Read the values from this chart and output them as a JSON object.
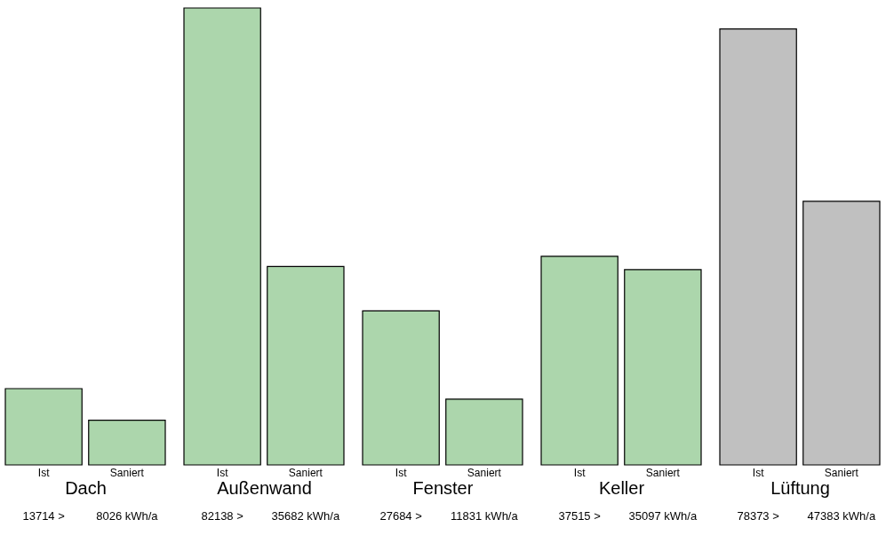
{
  "chart_data": [
    {
      "type": "bar",
      "xlabel": "Dach",
      "categories": [
        "Ist",
        "Saniert"
      ],
      "values": [
        13714,
        8026
      ],
      "colors": [
        "#acd6ac",
        "#acd6ac"
      ],
      "value_labels": [
        "13714 >",
        "8026 kWh/a"
      ]
    },
    {
      "type": "bar",
      "xlabel": "Außenwand",
      "categories": [
        "Ist",
        "Saniert"
      ],
      "values": [
        82138,
        35682
      ],
      "colors": [
        "#acd6ac",
        "#acd6ac"
      ],
      "value_labels": [
        "82138 >",
        "35682 kWh/a"
      ]
    },
    {
      "type": "bar",
      "xlabel": "Fenster",
      "categories": [
        "Ist",
        "Saniert"
      ],
      "values": [
        27684,
        11831
      ],
      "colors": [
        "#acd6ac",
        "#acd6ac"
      ],
      "value_labels": [
        "27684 >",
        "11831 kWh/a"
      ]
    },
    {
      "type": "bar",
      "xlabel": "Keller",
      "categories": [
        "Ist",
        "Saniert"
      ],
      "values": [
        37515,
        35097
      ],
      "colors": [
        "#acd6ac",
        "#acd6ac"
      ],
      "value_labels": [
        "37515 >",
        "35097 kWh/a"
      ]
    },
    {
      "type": "bar",
      "xlabel": "Lüftung",
      "categories": [
        "Ist",
        "Saniert"
      ],
      "values": [
        78373,
        47383
      ],
      "colors": [
        "#c0c0c0",
        "#c0c0c0"
      ],
      "value_labels": [
        "78373 >",
        "47383 kWh/a"
      ]
    }
  ]
}
